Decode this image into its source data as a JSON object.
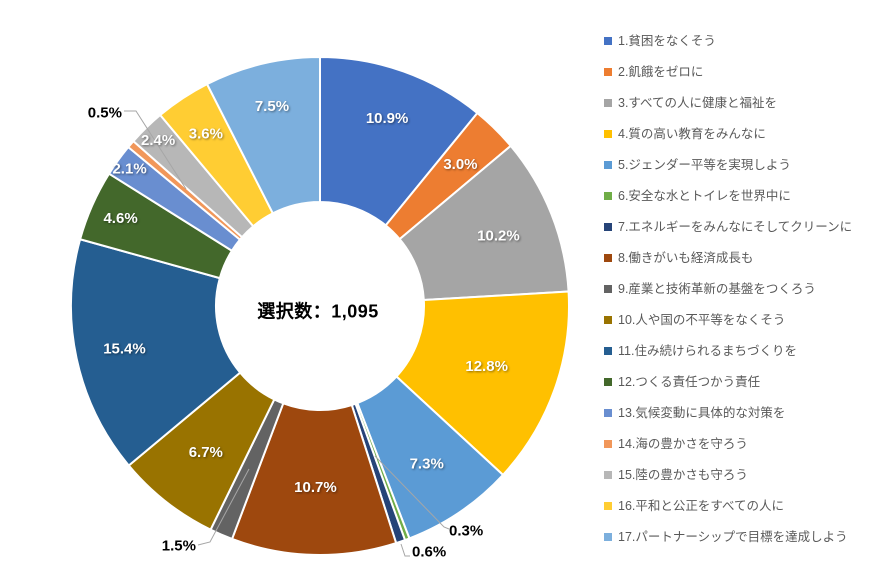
{
  "chart_data": {
    "type": "donut",
    "title": "",
    "center_label": "選択数：1,095",
    "total_count": "1,095",
    "unit": "%",
    "legend_position": "right",
    "background": "#ffffff",
    "legend_text_color": "#595959",
    "series": [
      {
        "name": "1.貧困をなくそう",
        "value": 10.9,
        "label": "10.9%",
        "color": "#4472C4",
        "label_style": "inside"
      },
      {
        "name": "2.飢餓をゼロに",
        "value": 3.0,
        "label": "3.0%",
        "color": "#ED7D31",
        "label_style": "inside"
      },
      {
        "name": "3.すべての人に健康と福祉を",
        "value": 10.2,
        "label": "10.2%",
        "color": "#A5A5A5",
        "label_style": "inside"
      },
      {
        "name": "4.質の高い教育をみんなに",
        "value": 12.8,
        "label": "12.8%",
        "color": "#FFC000",
        "label_style": "inside"
      },
      {
        "name": "5.ジェンダー平等を実現しよう",
        "value": 7.3,
        "label": "7.3%",
        "color": "#5B9BD5",
        "label_style": "inside"
      },
      {
        "name": "6.安全な水とトイレを世界中に",
        "value": 0.3,
        "label": "0.3%",
        "color": "#70AD47",
        "label_style": "callout"
      },
      {
        "name": "7.エネルギーをみんなにそしてクリーンに",
        "value": 0.6,
        "label": "0.6%",
        "color": "#264478",
        "label_style": "callout"
      },
      {
        "name": "8.働きがいも経済成長も",
        "value": 10.7,
        "label": "10.7%",
        "color": "#9E480E",
        "label_style": "inside"
      },
      {
        "name": "9.産業と技術革新の基盤をつくろう",
        "value": 1.5,
        "label": "1.5%",
        "color": "#636363",
        "label_style": "callout"
      },
      {
        "name": "10.人や国の不平等をなくそう",
        "value": 6.7,
        "label": "6.7%",
        "color": "#997300",
        "label_style": "inside"
      },
      {
        "name": "11.住み続けられるまちづくりを",
        "value": 15.4,
        "label": "15.4%",
        "color": "#255E91",
        "label_style": "inside"
      },
      {
        "name": "12.つくる責任つかう責任",
        "value": 4.6,
        "label": "4.6%",
        "color": "#43682B",
        "label_style": "inside"
      },
      {
        "name": "13.気候変動に具体的な対策を",
        "value": 2.1,
        "label": "2.1%",
        "color": "#698ED0",
        "label_style": "inside"
      },
      {
        "name": "14.海の豊かさを守ろう",
        "value": 0.5,
        "label": "0.5%",
        "color": "#F1975A",
        "label_style": "callout"
      },
      {
        "name": "15.陸の豊かさも守ろう",
        "value": 2.4,
        "label": "2.4%",
        "color": "#B7B7B7",
        "label_style": "inside"
      },
      {
        "name": "16.平和と公正をすべての人に",
        "value": 3.6,
        "label": "3.6%",
        "color": "#FFCD33",
        "label_style": "inside"
      },
      {
        "name": "17.パートナーシップで目標を達成しよう",
        "value": 7.5,
        "label": "7.5%",
        "color": "#7CAFDD",
        "label_style": "inside"
      }
    ]
  }
}
